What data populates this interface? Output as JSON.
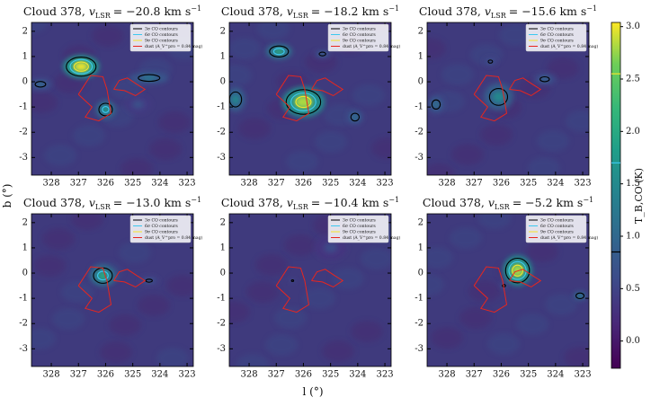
{
  "chart_data": {
    "type": "channel_maps",
    "x_label": "l (°)",
    "y_label": "b (°)",
    "xlim": [
      328.73,
      322.77
    ],
    "ylim": [
      -3.7,
      2.35
    ],
    "xticks": [
      328,
      327,
      326,
      325,
      324,
      323
    ],
    "yticks": [
      -3,
      -2,
      -1,
      0,
      1,
      2
    ],
    "legend": [
      {
        "label": "3σ CO contours",
        "color": "#000000"
      },
      {
        "label": "6σ CO contours",
        "color": "#3cc8f0"
      },
      {
        "label": "9σ CO contours",
        "color": "#f5e42a"
      },
      {
        "label": "dust (A_V^pro = 0.84 mag)",
        "color": "#e8261e"
      }
    ],
    "colorbar": {
      "label": "T_B,CO (K)",
      "lim": [
        -0.26,
        3.04
      ],
      "ticks": [
        {
          "value": 0,
          "label": "0.0"
        },
        {
          "value": 0.5,
          "label": "0.5"
        },
        {
          "value": 1,
          "label": "1.0"
        },
        {
          "value": 1.5,
          "label": "1.5"
        },
        {
          "value": 2,
          "label": "2.0"
        },
        {
          "value": 2.5,
          "label": "2.5"
        },
        {
          "value": 3,
          "label": "3.0"
        }
      ],
      "contour_levels": [
        0.85,
        1.7,
        2.55
      ]
    },
    "dust_contour": [
      [
        [
          327.0,
          -0.5
        ],
        [
          326.55,
          0.25
        ],
        [
          326.1,
          0.2
        ],
        [
          325.95,
          -0.3
        ],
        [
          325.8,
          -1.25
        ],
        [
          326.25,
          -1.55
        ],
        [
          326.75,
          -1.4
        ],
        [
          326.5,
          -1.0
        ],
        [
          327.0,
          -0.5
        ]
      ],
      [
        [
          325.7,
          -0.3
        ],
        [
          325.5,
          0.05
        ],
        [
          325.2,
          0.15
        ],
        [
          324.85,
          -0.1
        ],
        [
          324.55,
          -0.3
        ],
        [
          324.9,
          -0.55
        ],
        [
          325.3,
          -0.35
        ],
        [
          325.7,
          -0.3
        ]
      ]
    ],
    "panels": [
      {
        "title": {
          "text": "Cloud 378,",
          "symbol": "v",
          "subscript": "LSR",
          "value": "= −20.8 km s",
          "superscript": "−1"
        },
        "sources": [
          {
            "l": 326.9,
            "b": 0.6,
            "peak": 3.0,
            "rl": 0.55,
            "rb": 0.38
          },
          {
            "l": 326.0,
            "b": -1.1,
            "peak": 1.8,
            "rl": 0.3,
            "rb": 0.3
          },
          {
            "l": 324.4,
            "b": 0.15,
            "peak": 1.3,
            "rl": 0.6,
            "rb": 0.2
          },
          {
            "l": 328.4,
            "b": -0.1,
            "peak": 1.1,
            "rl": 0.35,
            "rb": 0.2
          },
          {
            "l": 324.8,
            "b": -0.9,
            "peak": 0.7,
            "rl": 0.4,
            "rb": 0.3
          }
        ]
      },
      {
        "title": {
          "text": "Cloud 378,",
          "symbol": "v",
          "subscript": "LSR",
          "value": "= −18.2 km s",
          "superscript": "−1"
        },
        "sources": [
          {
            "l": 326.0,
            "b": -0.8,
            "peak": 2.8,
            "rl": 0.65,
            "rb": 0.5
          },
          {
            "l": 326.9,
            "b": 1.2,
            "peak": 2.0,
            "rl": 0.4,
            "rb": 0.25
          },
          {
            "l": 324.1,
            "b": -1.4,
            "peak": 1.2,
            "rl": 0.25,
            "rb": 0.25
          },
          {
            "l": 328.5,
            "b": -0.7,
            "peak": 1.5,
            "rl": 0.3,
            "rb": 0.4
          },
          {
            "l": 325.3,
            "b": 1.1,
            "peak": 1.0,
            "rl": 0.25,
            "rb": 0.15
          }
        ]
      },
      {
        "title": {
          "text": "Cloud 378,",
          "symbol": "v",
          "subscript": "LSR",
          "value": "= −15.6 km s",
          "superscript": "−1"
        },
        "sources": [
          {
            "l": 326.1,
            "b": -0.6,
            "peak": 1.5,
            "rl": 0.45,
            "rb": 0.45
          },
          {
            "l": 328.4,
            "b": -0.9,
            "peak": 1.2,
            "rl": 0.25,
            "rb": 0.3
          },
          {
            "l": 324.4,
            "b": 0.1,
            "peak": 1.0,
            "rl": 0.35,
            "rb": 0.2
          },
          {
            "l": 326.4,
            "b": 0.8,
            "peak": 0.9,
            "rl": 0.2,
            "rb": 0.15
          }
        ]
      },
      {
        "title": {
          "text": "Cloud 378,",
          "symbol": "v",
          "subscript": "LSR",
          "value": "= −13.0 km s",
          "superscript": "−1"
        },
        "sources": [
          {
            "l": 326.1,
            "b": -0.1,
            "peak": 2.0,
            "rl": 0.4,
            "rb": 0.35
          },
          {
            "l": 324.4,
            "b": -0.3,
            "peak": 0.9,
            "rl": 0.3,
            "rb": 0.15
          }
        ]
      },
      {
        "title": {
          "text": "Cloud 378,",
          "symbol": "v",
          "subscript": "LSR",
          "value": "= −10.4 km s",
          "superscript": "−1"
        },
        "sources": [
          {
            "l": 326.4,
            "b": -0.3,
            "peak": 0.9,
            "rl": 0.1,
            "rb": 0.08
          },
          {
            "l": 325.0,
            "b": 1.0,
            "peak": 0.6,
            "rl": 0.5,
            "rb": 0.4
          }
        ]
      },
      {
        "title": {
          "text": "Cloud 378,",
          "symbol": "v",
          "subscript": "LSR",
          "value": "= −5.2 km s",
          "superscript": "−1"
        },
        "sources": [
          {
            "l": 325.4,
            "b": 0.1,
            "peak": 2.8,
            "rl": 0.45,
            "rb": 0.5
          },
          {
            "l": 323.1,
            "b": -0.9,
            "peak": 1.5,
            "rl": 0.2,
            "rb": 0.15
          },
          {
            "l": 325.9,
            "b": -0.5,
            "peak": 1.0,
            "rl": 0.12,
            "rb": 0.1
          }
        ]
      }
    ]
  }
}
